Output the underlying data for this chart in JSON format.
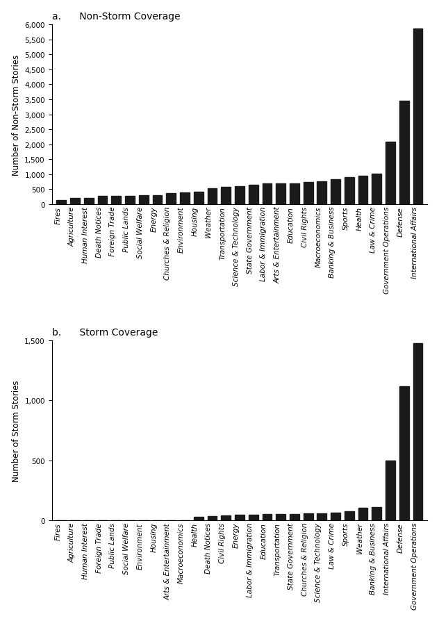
{
  "non_storm": {
    "categories": [
      "Fires",
      "Agriculture",
      "Human Interest",
      "Death Notices",
      "Foreign Trade",
      "Public Lands",
      "Social Welfare",
      "Energy",
      "Churches & Religion",
      "Environment",
      "Housing",
      "Weather",
      "Transportation",
      "Science & Technology",
      "State Government",
      "Labor & Immigration",
      "Arts & Entertainment",
      "Education",
      "Civil Rights",
      "Macroeconomics",
      "Banking & Business",
      "Sports",
      "Health",
      "Law & Crime",
      "Government Operations",
      "Defense",
      "International Affairs"
    ],
    "values": [
      150,
      205,
      215,
      270,
      275,
      285,
      300,
      310,
      375,
      405,
      420,
      525,
      575,
      595,
      655,
      685,
      695,
      705,
      735,
      765,
      830,
      910,
      950,
      1020,
      2090,
      3450,
      5850
    ],
    "ylabel": "Number of Non-Storm Stories",
    "title": "Non-Storm Coverage",
    "panel_label": "a.",
    "ylim": [
      0,
      6000
    ],
    "yticks": [
      0,
      500,
      1000,
      1500,
      2000,
      2500,
      3000,
      3500,
      4000,
      4500,
      5000,
      5500,
      6000
    ]
  },
  "storm": {
    "categories": [
      "Fires",
      "Agriculture",
      "Human Interest",
      "Foreign Trade",
      "Public Lands",
      "Social Welfare",
      "Environment",
      "Housing",
      "Arts & Entertainment",
      "Macroeconomics",
      "Health",
      "Death Notices",
      "Civil Rights",
      "Energy",
      "Labor & Immigration",
      "Education",
      "Transportation",
      "State Government",
      "Churches & Religion",
      "Science & Technology",
      "Law & Crime",
      "Sports",
      "Weather",
      "Banking & Business",
      "International Affairs",
      "Defense",
      "Government Operations"
    ],
    "values": [
      0,
      0,
      0,
      0,
      0,
      0,
      0,
      0,
      0,
      0,
      30,
      35,
      40,
      45,
      50,
      55,
      55,
      55,
      60,
      60,
      65,
      75,
      105,
      110,
      500,
      1120,
      1480
    ],
    "ylabel": "Number of Storm Stories",
    "title": "Storm Coverage",
    "panel_label": "b.",
    "ylim": [
      0,
      1500
    ],
    "yticks": [
      0,
      500,
      1000,
      1500
    ]
  },
  "bar_color": "#1a1a1a",
  "bg_color": "#ffffff",
  "title_fontsize": 10,
  "label_fontsize": 8.5,
  "tick_fontsize": 7.5
}
